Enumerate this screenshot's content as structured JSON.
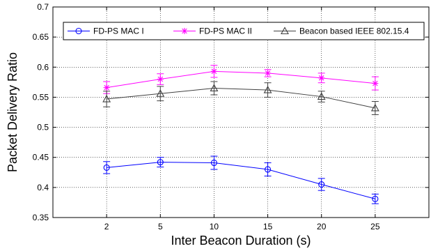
{
  "chart_data": {
    "type": "line",
    "xlabel": "Inter Beacon Duration (s)",
    "ylabel": "Packet Delivery Ratio",
    "categories": [
      "2",
      "5",
      "10",
      "15",
      "20",
      "25"
    ],
    "ylim": [
      0.35,
      0.7
    ],
    "yticks": [
      "0.35",
      "0.4",
      "0.45",
      "0.5",
      "0.55",
      "0.6",
      "0.65",
      "0.7"
    ],
    "grid": true,
    "legend_position": "top-right",
    "series": [
      {
        "name": "FD-PS MAC I",
        "color": "#0000ff",
        "marker": "circle",
        "values": [
          0.433,
          0.442,
          0.441,
          0.43,
          0.405,
          0.381
        ],
        "errors": [
          0.01,
          0.008,
          0.011,
          0.011,
          0.01,
          0.008
        ]
      },
      {
        "name": "FD-PS MAC II",
        "color": "#ff00ff",
        "marker": "star",
        "values": [
          0.566,
          0.58,
          0.593,
          0.59,
          0.582,
          0.573
        ],
        "errors": [
          0.01,
          0.009,
          0.01,
          0.006,
          0.008,
          0.011
        ]
      },
      {
        "name": "Beacon based IEEE 802.15.4",
        "color": "#404040",
        "marker": "triangle",
        "values": [
          0.547,
          0.556,
          0.565,
          0.562,
          0.551,
          0.532
        ],
        "errors": [
          0.013,
          0.012,
          0.011,
          0.012,
          0.009,
          0.011
        ]
      }
    ]
  }
}
